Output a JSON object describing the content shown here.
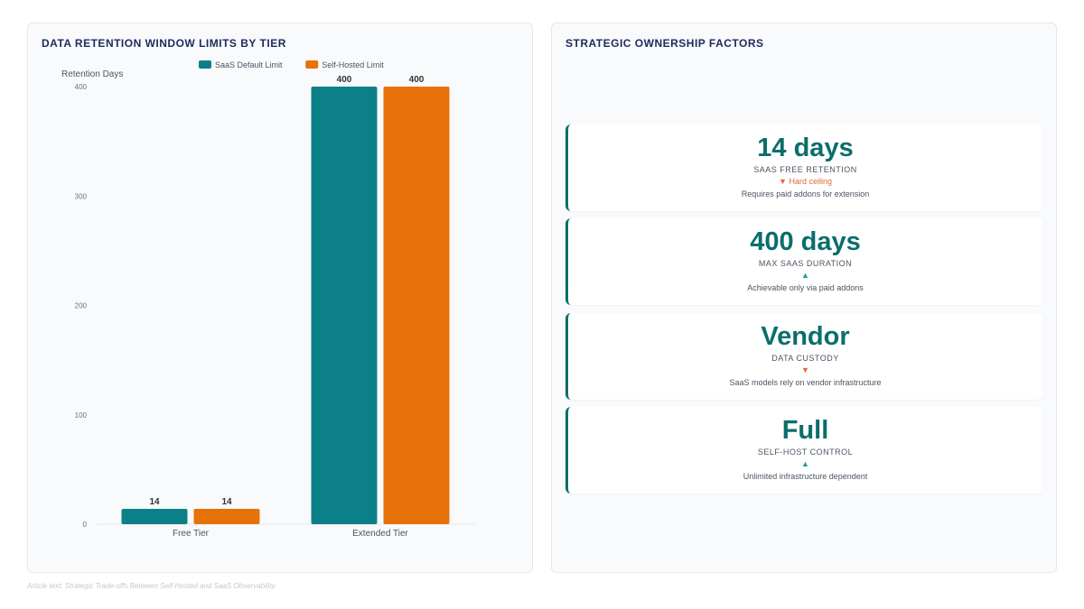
{
  "left_panel": {
    "title": "DATA RETENTION WINDOW LIMITS BY TIER"
  },
  "right_panel": {
    "title": "STRATEGIC OWNERSHIP FACTORS"
  },
  "chart_data": {
    "type": "bar",
    "title": "DATA RETENTION WINDOW LIMITS BY TIER",
    "ylabel": "Retention Days",
    "xlabel": "",
    "categories": [
      "Free Tier",
      "Extended Tier"
    ],
    "series": [
      {
        "name": "SaaS Default Limit",
        "values": [
          14,
          400
        ],
        "color": "#0b8089"
      },
      {
        "name": "Self-Hosted Limit",
        "values": [
          14,
          400
        ],
        "color": "#e8710a"
      }
    ],
    "ylim": [
      0,
      400
    ],
    "yticks": [
      0,
      100,
      200,
      300,
      400
    ],
    "legend": "top-center",
    "grid": false,
    "data_labels": true
  },
  "metrics": [
    {
      "value": "14 days",
      "label": "SAAS FREE RETENTION",
      "trend": "down",
      "trend_symbol": "▼",
      "trend_text": "Hard ceiling",
      "note": "Requires paid addons for extension"
    },
    {
      "value": "400 days",
      "label": "MAX SAAS DURATION",
      "trend": "up",
      "trend_symbol": "▲",
      "trend_text": "",
      "note": "Achievable only via paid addons"
    },
    {
      "value": "Vendor",
      "label": "DATA CUSTODY",
      "trend": "down",
      "trend_symbol": "▼",
      "trend_text": "",
      "note": "SaaS models rely on vendor infrastructure"
    },
    {
      "value": "Full",
      "label": "SELF-HOST CONTROL",
      "trend": "up",
      "trend_symbol": "▲",
      "trend_text": "",
      "note": "Unlimited infrastructure dependent"
    }
  ],
  "footnote": "Article text: Strategic Trade-offs Between Self-Hosted and SaaS Observability"
}
